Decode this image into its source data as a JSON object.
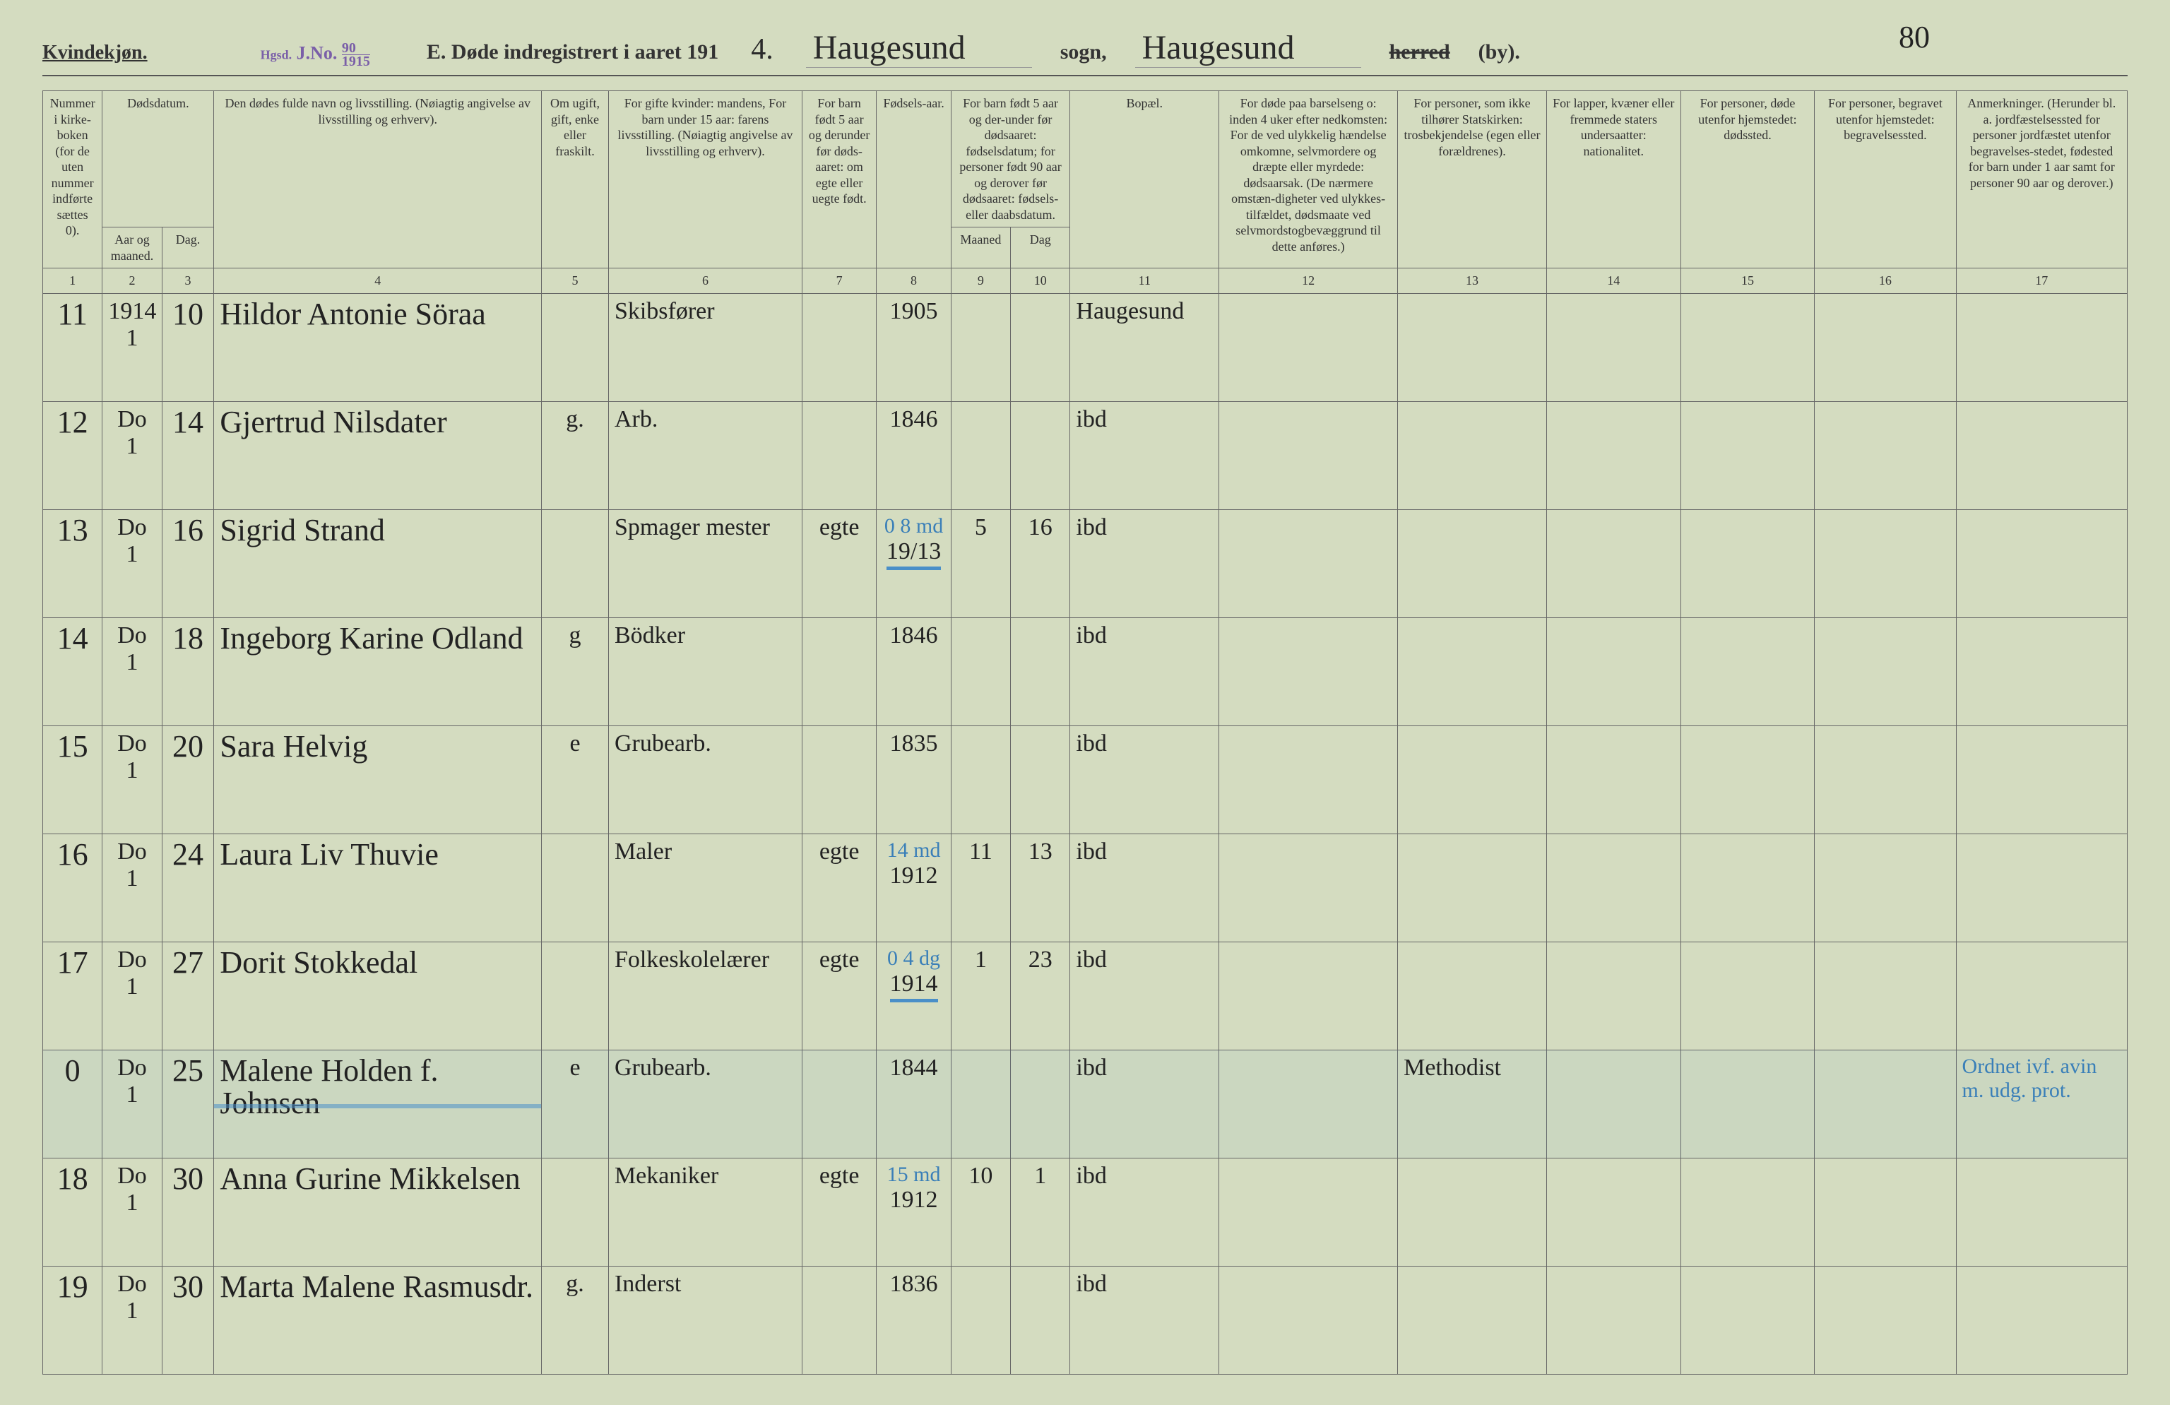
{
  "page_number_hand": "80",
  "header": {
    "kvindekjon": "Kvindekjøn.",
    "jno_prefix": "Hgsd.",
    "jno_label": "J.No.",
    "jno_top": "90",
    "jno_bottom": "1915",
    "title_prefix": "E.  Døde indregistrert i aaret 191",
    "year_suffix": "4.",
    "sogn_hand_left": "Haugesund",
    "sogn_label": "sogn,",
    "sogn_hand_right": "Haugesund",
    "herred": "herred",
    "by": "(by)."
  },
  "columns": {
    "c1": "Nummer i kirke-boken (for de uten nummer indførte sættes 0).",
    "c2": "Dødsdatum.",
    "c2a": "Aar og maaned.",
    "c2b": "Dag.",
    "c3": "Den dødes fulde navn og livsstilling. (Nøiagtig angivelse av livsstilling og erhverv).",
    "c4": "Om ugift, gift, enke eller fraskilt.",
    "c5": "For gifte kvinder: mandens, For barn under 15 aar: farens livsstilling. (Nøiagtig angivelse av livsstilling og erhverv).",
    "c6": "For barn født 5 aar og derunder før døds-aaret: om egte eller uegte født.",
    "c7": "Fødsels-aar.",
    "c8": "For barn født 5 aar og der-under før dødsaaret: fødselsdatum; for personer født 90 aar og derover før dødsaaret: fødsels- eller daabsdatum.",
    "c8a": "Maaned",
    "c8b": "Dag",
    "c9": "Bopæl.",
    "c10": "For døde paa barselseng o: inden 4 uker efter nedkomsten: For de ved ulykkelig hændelse omkomne, selvmordere og dræpte eller myrdede: dødsaarsak. (De nærmere omstæn-digheter ved ulykkes-tilfældet, dødsmaate ved selvmordstogbevæggrund til dette anføres.)",
    "c11": "For personer, som ikke tilhører Statskirken: trosbekjendelse (egen eller forældrenes).",
    "c12": "For lapper, kvæner eller fremmede staters undersaatter: nationalitet.",
    "c13": "For personer, døde utenfor hjemstedet: dødssted.",
    "c14": "For personer, begravet utenfor hjemstedet: begravelsessted.",
    "c15": "Anmerkninger. (Herunder bl. a. jordfæstelsessted for personer jordfæstet utenfor begravelses-stedet, fødested for barn under 1 aar samt for personer 90 aar og derover.)"
  },
  "colnums": [
    "1",
    "2",
    "3",
    "4",
    "5",
    "6",
    "7",
    "8",
    "9",
    "10",
    "11",
    "12",
    "13",
    "14",
    "15",
    "16",
    "17"
  ],
  "rows": [
    {
      "num": "11",
      "year": "1914",
      "month": "1",
      "day": "10",
      "name": "Hildor Antonie Söraa",
      "status": "",
      "occupation": "Skibsfører",
      "legit": "",
      "birth": "1905",
      "bm": "",
      "bd": "",
      "place": "Haugesund",
      "c10": "",
      "c11": "",
      "c12": "",
      "c13": "",
      "c14": "",
      "c15": "",
      "blue_top": "",
      "highlight": false
    },
    {
      "num": "12",
      "year": "Do",
      "month": "1",
      "day": "14",
      "name": "Gjertrud Nilsdater",
      "status": "g.",
      "occupation": "Arb.",
      "legit": "",
      "birth": "1846",
      "bm": "",
      "bd": "",
      "place": "ibd",
      "c10": "",
      "c11": "",
      "c12": "",
      "c13": "",
      "c14": "",
      "c15": "",
      "blue_top": "",
      "highlight": false
    },
    {
      "num": "13",
      "year": "Do",
      "month": "1",
      "day": "16",
      "name": "Sigrid Strand",
      "status": "",
      "occupation": "Spmager mester",
      "legit": "egte",
      "birth": "19/13",
      "bm": "5",
      "bd": "16",
      "place": "ibd",
      "c10": "",
      "c11": "",
      "c12": "",
      "c13": "",
      "c14": "",
      "c15": "",
      "blue_top": "0  8 md",
      "highlight": false,
      "blue_under": true
    },
    {
      "num": "14",
      "year": "Do",
      "month": "1",
      "day": "18",
      "name": "Ingeborg Karine Odland",
      "status": "g",
      "occupation": "Bödker",
      "legit": "",
      "birth": "1846",
      "bm": "",
      "bd": "",
      "place": "ibd",
      "c10": "",
      "c11": "",
      "c12": "",
      "c13": "",
      "c14": "",
      "c15": "",
      "blue_top": "",
      "highlight": false
    },
    {
      "num": "15",
      "year": "Do",
      "month": "1",
      "day": "20",
      "name": "Sara Helvig",
      "status": "e",
      "occupation": "Grubearb.",
      "legit": "",
      "birth": "1835",
      "bm": "",
      "bd": "",
      "place": "ibd",
      "c10": "",
      "c11": "",
      "c12": "",
      "c13": "",
      "c14": "",
      "c15": "",
      "blue_top": "",
      "highlight": false
    },
    {
      "num": "16",
      "year": "Do",
      "month": "1",
      "day": "24",
      "name": "Laura Liv Thuvie",
      "status": "",
      "occupation": "Maler",
      "legit": "egte",
      "birth": "1912",
      "bm": "11",
      "bd": "13",
      "place": "ibd",
      "c10": "",
      "c11": "",
      "c12": "",
      "c13": "",
      "c14": "",
      "c15": "",
      "blue_top": "14 md",
      "highlight": false
    },
    {
      "num": "17",
      "year": "Do",
      "month": "1",
      "day": "27",
      "name": "Dorit Stokkedal",
      "status": "",
      "occupation": "Folkeskolelærer",
      "legit": "egte",
      "birth": "1914",
      "bm": "1",
      "bd": "23",
      "place": "ibd",
      "c10": "",
      "c11": "",
      "c12": "",
      "c13": "",
      "c14": "",
      "c15": "",
      "blue_top": "0  4 dg",
      "highlight": false,
      "blue_under": true
    },
    {
      "num": "0",
      "year": "Do",
      "month": "1",
      "day": "25",
      "name": "Malene Holden f. Johnsen",
      "status": "e",
      "occupation": "Grubearb.",
      "legit": "",
      "birth": "1844",
      "bm": "",
      "bd": "",
      "place": "ibd",
      "c10": "",
      "c11": "Methodist",
      "c12": "",
      "c13": "",
      "c14": "",
      "c15": "Ordnet ivf. avin m. udg. prot.",
      "blue_top": "",
      "highlight": true
    },
    {
      "num": "18",
      "year": "Do",
      "month": "1",
      "day": "30",
      "name": "Anna Gurine Mikkelsen",
      "status": "",
      "occupation": "Mekaniker",
      "legit": "egte",
      "birth": "1912",
      "bm": "10",
      "bd": "1",
      "place": "ibd",
      "c10": "",
      "c11": "",
      "c12": "",
      "c13": "",
      "c14": "",
      "c15": "",
      "blue_top": "15 md",
      "highlight": false
    },
    {
      "num": "19",
      "year": "Do",
      "month": "1",
      "day": "30",
      "name": "Marta Malene Rasmusdr.",
      "status": "g.",
      "occupation": "Inderst",
      "legit": "",
      "birth": "1836",
      "bm": "",
      "bd": "",
      "place": "ibd",
      "c10": "",
      "c11": "",
      "c12": "",
      "c13": "",
      "c14": "",
      "c15": "",
      "blue_top": "",
      "highlight": false
    }
  ]
}
